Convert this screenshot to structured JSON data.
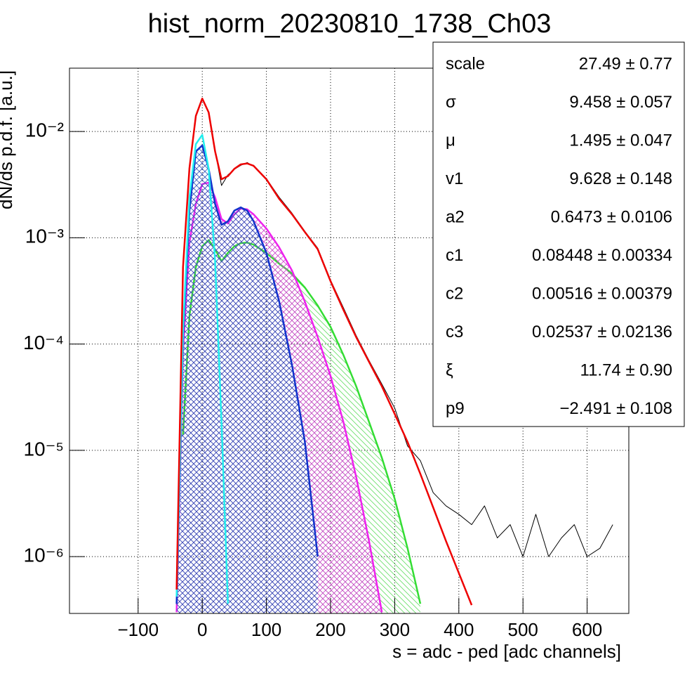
{
  "chart_data": {
    "type": "line",
    "title": "hist_norm_20230810_1738_Ch03",
    "x_label": "s = adc - ped [adc channels]",
    "y_label": "dN/ds p.d.f. [a.u.]",
    "ylog": true,
    "grid": true,
    "xlim": [
      -207,
      665
    ],
    "ylim": [
      2.92e-07,
      0.0394
    ],
    "xticks": [
      {
        "value": -100,
        "label": "−100"
      },
      0,
      100,
      200,
      300,
      400,
      500,
      600
    ],
    "yticks": [
      {
        "value": 1e-06,
        "label": "10⁻⁶"
      },
      {
        "value": 1e-05,
        "label": "10⁻⁵"
      },
      {
        "value": 0.0001,
        "label": "10⁻⁴"
      },
      {
        "value": 0.001,
        "label": "10⁻³"
      },
      {
        "value": 0.01,
        "label": "10⁻²"
      }
    ],
    "x": [
      -50,
      -40,
      -30,
      -20,
      -10,
      0,
      10,
      20,
      30,
      40,
      50,
      60,
      70,
      80,
      100,
      120,
      140,
      160,
      180,
      200,
      220,
      240,
      260,
      280,
      300,
      320,
      340,
      360,
      380,
      400,
      420,
      440,
      460,
      480,
      500,
      520,
      540,
      560,
      580,
      600,
      620,
      640
    ],
    "series": [
      {
        "color": "#33dd33",
        "hatch": "green-hatch",
        "values": [
          null,
          null,
          1.4e-05,
          0.000183,
          0.00053,
          0.00083,
          0.00095,
          0.00078,
          0.0006,
          0.00072,
          0.00083,
          0.00089,
          0.0009,
          0.00086,
          0.00072,
          0.00057,
          0.00046,
          0.00034,
          0.00023,
          0.000145,
          7.9e-05,
          4e-05,
          1.85e-05,
          8.5e-06,
          3.5e-06,
          1.2e-06,
          3.6e-07,
          null,
          null,
          null,
          null,
          null,
          null,
          null,
          null,
          null,
          null,
          null,
          null,
          null,
          null,
          null
        ]
      },
      {
        "color": "#ee22ee",
        "hatch": "magenta-hatch",
        "values": [
          null,
          3e-07,
          8.5e-05,
          0.0009,
          0.00208,
          0.0032,
          0.0033,
          0.0024,
          0.0015,
          0.00136,
          0.00166,
          0.00188,
          0.00185,
          0.00166,
          0.00122,
          0.00081,
          0.00049,
          0.00025,
          0.000116,
          5e-05,
          1.85e-05,
          5.6e-06,
          1.4e-06,
          3e-07,
          null,
          null,
          null,
          null,
          null,
          null,
          null,
          null,
          null,
          null,
          null,
          null,
          null,
          null,
          null,
          null,
          null,
          null
        ]
      },
      {
        "color": "#1133cc",
        "hatch": "blue-hatch",
        "values": [
          null,
          3.6e-07,
          0.000116,
          0.0018,
          0.0065,
          0.0074,
          0.00445,
          0.00208,
          0.00132,
          0.00143,
          0.0018,
          0.00193,
          0.0018,
          0.00143,
          0.00072,
          0.00025,
          6.3e-05,
          1.2e-05,
          1e-06,
          null,
          null,
          null,
          null,
          null,
          null,
          null,
          null,
          null,
          null,
          null,
          null,
          null,
          null,
          null,
          null,
          null,
          null,
          null,
          null,
          null,
          null,
          null
        ]
      },
      {
        "color": "#22eeee",
        "values": [
          null,
          4.2e-07,
          0.000134,
          0.0024,
          0.0076,
          0.0093,
          0.00445,
          0.00061,
          1.85e-05,
          3.6e-07,
          null,
          null,
          null,
          null,
          null,
          null,
          null,
          null,
          null,
          null,
          null,
          null,
          null,
          null,
          null,
          null,
          null,
          null,
          null,
          null,
          null,
          null,
          null,
          null,
          null,
          null,
          null,
          null,
          null,
          null,
          null,
          null
        ]
      },
      {
        "color": "#000000",
        "values": [
          null,
          null,
          0.0005,
          0.0046,
          0.0138,
          0.0205,
          0.0149,
          0.0066,
          0.0031,
          0.0039,
          0.0044,
          0.0048,
          0.0051,
          0.0047,
          0.0036,
          0.0024,
          0.0017,
          0.00115,
          0.0008,
          0.0004,
          0.00022,
          0.00012,
          7e-05,
          4.2e-05,
          2.5e-05,
          1.1e-05,
          8e-06,
          4e-06,
          3e-06,
          2.5e-06,
          2e-06,
          3e-06,
          1.5e-06,
          2e-06,
          1e-06,
          2.5e-06,
          1e-06,
          1.5e-06,
          2e-06,
          1e-06,
          1.2e-06,
          2e-06
        ]
      },
      {
        "color": "#ee0000",
        "values": [
          null,
          4.9e-07,
          0.00053,
          0.0045,
          0.014,
          0.0204,
          0.0151,
          0.0065,
          0.00355,
          0.0038,
          0.00445,
          0.0049,
          0.005,
          0.00475,
          0.00355,
          0.00232,
          0.00166,
          0.00113,
          0.00078,
          0.00039,
          0.00021,
          0.000116,
          6.8e-05,
          4e-05,
          2.2e-05,
          1.2e-05,
          6e-06,
          2.9e-06,
          1.4e-06,
          7e-07,
          3.5e-07,
          null,
          null,
          null,
          null,
          null,
          null,
          null,
          null,
          null,
          null,
          null
        ]
      }
    ],
    "stats": [
      {
        "name": "scale",
        "value": "27.49 ± 0.77"
      },
      {
        "name": "σ",
        "value": "9.458 ± 0.057"
      },
      {
        "name": "μ",
        "value": "1.495 ± 0.047"
      },
      {
        "name": "v1",
        "value": "9.628 ± 0.148"
      },
      {
        "name": "a2",
        "value": "0.6473 ± 0.0106"
      },
      {
        "name": "c1",
        "value": "0.08448 ± 0.00334"
      },
      {
        "name": "c2",
        "value": "0.00516 ± 0.00379"
      },
      {
        "name": "c3",
        "value": "0.02537 ± 0.02136"
      },
      {
        "name": "ξ",
        "value": "11.74 ± 0.90"
      },
      {
        "name": "p9",
        "value": "−2.491 ± 0.108"
      }
    ]
  }
}
